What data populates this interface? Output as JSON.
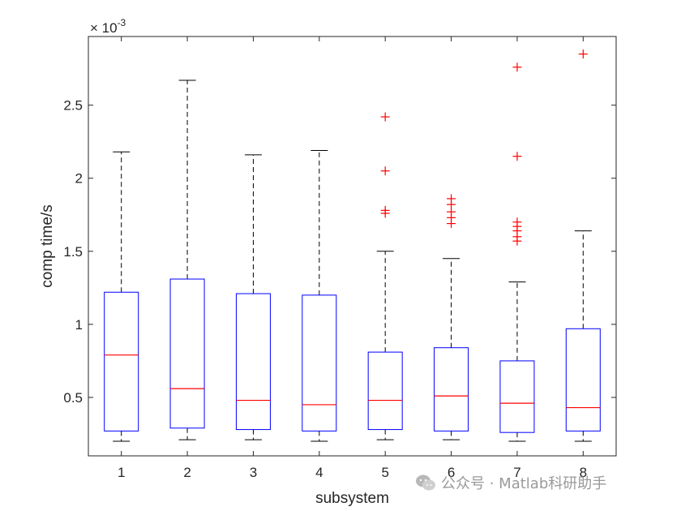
{
  "chart_data": {
    "type": "boxplot",
    "title": "",
    "xlabel": "subsystem",
    "ylabel": "comp time/s",
    "y_exponent_label": "× 10",
    "y_exponent_power": "-3",
    "categories": [
      "1",
      "2",
      "3",
      "4",
      "5",
      "6",
      "7",
      "8"
    ],
    "ylim": [
      0.1,
      2.97
    ],
    "yticks": [
      0.5,
      1,
      1.5,
      2,
      2.5
    ],
    "ytick_labels": [
      "0.5",
      "1",
      "1.5",
      "2",
      "2.5"
    ],
    "boxes": [
      {
        "label": "1",
        "whisker_low": 0.2,
        "q1": 0.27,
        "median": 0.79,
        "q3": 1.22,
        "whisker_high": 2.18,
        "outliers": []
      },
      {
        "label": "2",
        "whisker_low": 0.21,
        "q1": 0.29,
        "median": 0.56,
        "q3": 1.31,
        "whisker_high": 2.67,
        "outliers": []
      },
      {
        "label": "3",
        "whisker_low": 0.21,
        "q1": 0.28,
        "median": 0.48,
        "q3": 1.21,
        "whisker_high": 2.16,
        "outliers": []
      },
      {
        "label": "4",
        "whisker_low": 0.2,
        "q1": 0.27,
        "median": 0.45,
        "q3": 1.2,
        "whisker_high": 2.19,
        "outliers": []
      },
      {
        "label": "5",
        "whisker_low": 0.21,
        "q1": 0.28,
        "median": 0.48,
        "q3": 0.81,
        "whisker_high": 1.5,
        "outliers": [
          1.76,
          1.78,
          2.05,
          2.42
        ]
      },
      {
        "label": "6",
        "whisker_low": 0.21,
        "q1": 0.27,
        "median": 0.51,
        "q3": 0.84,
        "whisker_high": 1.45,
        "outliers": [
          1.69,
          1.73,
          1.77,
          1.82,
          1.86
        ]
      },
      {
        "label": "7",
        "whisker_low": 0.2,
        "q1": 0.26,
        "median": 0.46,
        "q3": 0.75,
        "whisker_high": 1.29,
        "outliers": [
          1.57,
          1.6,
          1.64,
          1.67,
          1.7,
          2.15,
          2.76
        ]
      },
      {
        "label": "8",
        "whisker_low": 0.2,
        "q1": 0.27,
        "median": 0.43,
        "q3": 0.97,
        "whisker_high": 1.64,
        "outliers": [
          2.85
        ]
      }
    ],
    "colors": {
      "box": "#0000ff",
      "median": "#ff0000",
      "whisker": "#000000",
      "outlier": "#ff0000",
      "axis": "#262626"
    },
    "grid": false
  },
  "watermark": {
    "text": "公众号 · Matlab科研助手",
    "icon": "wechat-icon",
    "color": "#9a9a9a"
  }
}
